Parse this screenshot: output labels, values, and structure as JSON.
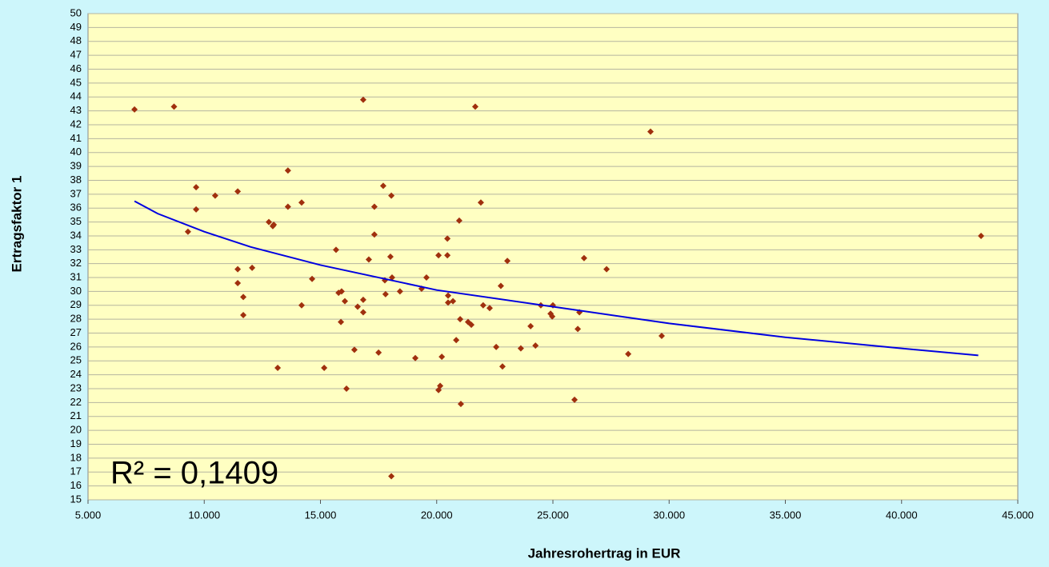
{
  "chart_data": {
    "type": "scatter",
    "xlabel": "Jahresrohertrag in EUR",
    "ylabel": "Ertragsfaktor 1",
    "annotation": "R² = 0,1409",
    "color": "#a0300e",
    "x": [
      7000,
      8700,
      9650,
      9650,
      9300,
      10470,
      11440,
      11440,
      11440,
      11680,
      11680,
      12060,
      12780,
      12990,
      12950,
      13160,
      13600,
      13600,
      14190,
      14190,
      14640,
      15160,
      15670,
      15780,
      15910,
      15880,
      16050,
      16120,
      16460,
      16600,
      16840,
      16840,
      16840,
      17080,
      17320,
      17320,
      17500,
      17700,
      17770,
      17800,
      18010,
      18050,
      18080,
      18050,
      18420,
      19080,
      19350,
      19560,
      20080,
      20080,
      20150,
      20220,
      20460,
      20460,
      20490,
      20490,
      20700,
      20840,
      20970,
      21010,
      21040,
      21350,
      21490,
      21660,
      21900,
      22000,
      22280,
      22560,
      22760,
      22830,
      23040,
      23620,
      24040,
      24250,
      24480,
      24900,
      24970,
      25000,
      25930,
      26070,
      26140,
      26340,
      27310,
      28240,
      29200,
      29680,
      43420
    ],
    "values": [
      43.1,
      43.3,
      37.5,
      35.9,
      34.3,
      36.9,
      37.2,
      31.6,
      30.6,
      29.6,
      28.3,
      31.7,
      35.0,
      34.8,
      34.7,
      24.5,
      38.7,
      36.1,
      36.4,
      29.0,
      30.9,
      24.5,
      33.0,
      29.9,
      30.0,
      27.8,
      29.3,
      23.0,
      25.8,
      28.9,
      43.8,
      29.4,
      28.5,
      32.3,
      34.1,
      36.1,
      25.6,
      37.6,
      30.8,
      29.8,
      32.5,
      36.9,
      31.0,
      16.7,
      30.0,
      25.2,
      30.2,
      31.0,
      32.6,
      22.9,
      23.2,
      25.3,
      33.8,
      32.6,
      29.7,
      29.2,
      29.3,
      26.5,
      35.1,
      28.0,
      21.9,
      27.8,
      27.6,
      43.3,
      36.4,
      29.0,
      28.8,
      26.0,
      30.4,
      24.6,
      32.2,
      25.9,
      27.5,
      26.1,
      29.0,
      28.4,
      28.2,
      29.0,
      22.2,
      27.3,
      28.5,
      32.4,
      31.6,
      25.5,
      41.5,
      26.8,
      34.0
    ],
    "trendline": {
      "color": "#0000e0",
      "x": [
        7000,
        8000,
        10000,
        12000,
        15000,
        20000,
        25000,
        30000,
        35000,
        40000,
        43300
      ],
      "values": [
        36.5,
        35.6,
        34.3,
        33.2,
        31.9,
        30.1,
        28.9,
        27.7,
        26.7,
        25.9,
        25.4
      ]
    },
    "xlim": [
      5000,
      45000
    ],
    "ylim": [
      15,
      50
    ],
    "xticks": [
      {
        "value": 5000,
        "label": "5.000"
      },
      {
        "value": 10000,
        "label": "10.000"
      },
      {
        "value": 15000,
        "label": "15.000"
      },
      {
        "value": 20000,
        "label": "20.000"
      },
      {
        "value": 25000,
        "label": "25.000"
      },
      {
        "value": 30000,
        "label": "30.000"
      },
      {
        "value": 35000,
        "label": "35.000"
      },
      {
        "value": 40000,
        "label": "40.000"
      },
      {
        "value": 45000,
        "label": "45.000"
      }
    ],
    "yticks": [
      15,
      16,
      17,
      18,
      19,
      20,
      21,
      22,
      23,
      24,
      25,
      26,
      27,
      28,
      29,
      30,
      31,
      32,
      33,
      34,
      35,
      36,
      37,
      38,
      39,
      40,
      41,
      42,
      43,
      44,
      45,
      46,
      47,
      48,
      49,
      50
    ],
    "grid": true
  }
}
